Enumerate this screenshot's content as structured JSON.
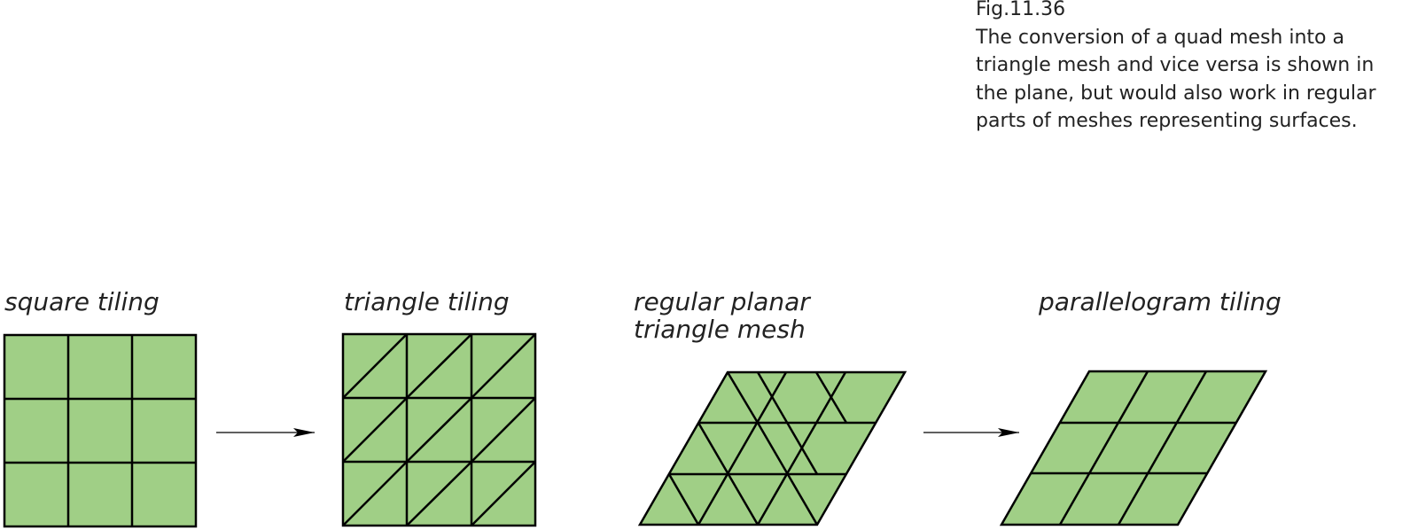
{
  "caption": {
    "figure_number": "Fig.11.36",
    "text": "The conversion of a quad mesh into a triangle mesh and vice versa is shown in the plane, but would also work in regular parts of meshes representing surfaces."
  },
  "panels": {
    "square": {
      "label": "square tiling"
    },
    "triangle": {
      "label": "triangle tiling"
    },
    "regular": {
      "label_line1": "regular planar",
      "label_line2": "triangle mesh"
    },
    "parallelogram": {
      "label": "parallelogram tiling"
    }
  },
  "colors": {
    "fill": "#a0cf86",
    "stroke": "#000000",
    "text": "#222222"
  }
}
